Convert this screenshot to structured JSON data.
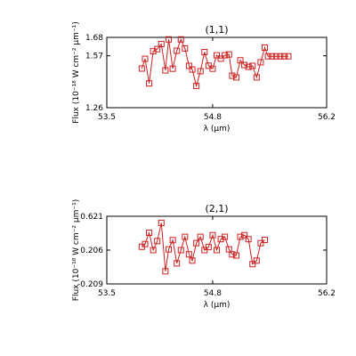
{
  "colors": {
    "series": "#cc1f1f",
    "axis": "#000000",
    "background": "#ffffff"
  },
  "ylabel_text": "Flux (10⁻¹⁸ W cm⁻² μm⁻¹)",
  "chart_data": [
    {
      "type": "line",
      "title": "(1,1)",
      "xlabel": "λ (μm)",
      "ylabel": "Flux (10⁻¹⁸ W cm⁻² μm⁻¹)",
      "xlim": [
        53.5,
        56.2
      ],
      "ylim": [
        1.26,
        1.68
      ],
      "xticks": [
        "53.5",
        "54.8",
        "56.2"
      ],
      "yticks": [
        "1.26",
        "1.57",
        "1.68"
      ],
      "ytick_values": [
        1.26,
        1.57,
        1.68
      ],
      "marker": "square",
      "grid": false,
      "series": [
        {
          "x": [
            53.93,
            53.97,
            54.02,
            54.07,
            54.12,
            54.17,
            54.22,
            54.26,
            54.31,
            54.36,
            54.41,
            54.46,
            54.51,
            54.55,
            54.6,
            54.65,
            54.7,
            54.75,
            54.8,
            54.85,
            54.9,
            54.95,
            55.0,
            55.04,
            55.09,
            55.14,
            55.19,
            55.24,
            55.29,
            55.34,
            55.39,
            55.44,
            55.48,
            55.53,
            55.58,
            55.63,
            55.68,
            55.73
          ],
          "y": [
            1.494,
            1.552,
            1.405,
            1.597,
            1.61,
            1.64,
            1.483,
            1.668,
            1.493,
            1.6,
            1.668,
            1.614,
            1.51,
            1.488,
            1.39,
            1.478,
            1.592,
            1.511,
            1.493,
            1.573,
            1.553,
            1.573,
            1.578,
            1.451,
            1.441,
            1.543,
            1.515,
            1.504,
            1.51,
            1.441,
            1.531,
            1.619,
            1.567,
            1.567,
            1.567,
            1.567,
            1.567,
            1.567
          ]
        }
      ]
    },
    {
      "type": "line",
      "title": "(2,1)",
      "xlabel": "λ (μm)",
      "ylabel": "Flux (10⁻¹⁸ W cm⁻² μm⁻¹)",
      "xlim": [
        53.5,
        56.2
      ],
      "ylim": [
        -0.209,
        0.621
      ],
      "xticks": [
        "53.5",
        "54.8",
        "56.2"
      ],
      "yticks": [
        "-0.209",
        "0.206",
        "0.621"
      ],
      "ytick_values": [
        -0.209,
        0.206,
        0.621
      ],
      "marker": "square",
      "grid": false,
      "series": [
        {
          "x": [
            53.93,
            53.97,
            54.02,
            54.07,
            54.12,
            54.17,
            54.22,
            54.26,
            54.31,
            54.36,
            54.41,
            54.46,
            54.51,
            54.55,
            54.6,
            54.65,
            54.7,
            54.75,
            54.8,
            54.85,
            54.9,
            54.95,
            55.0,
            55.04,
            55.09,
            55.14,
            55.19,
            55.24,
            55.29,
            55.34,
            55.39,
            55.44
          ],
          "y": [
            0.247,
            0.28,
            0.419,
            0.206,
            0.317,
            0.54,
            -0.054,
            0.215,
            0.329,
            0.043,
            0.206,
            0.369,
            0.154,
            0.077,
            0.291,
            0.369,
            0.206,
            0.243,
            0.389,
            0.206,
            0.34,
            0.369,
            0.215,
            0.154,
            0.14,
            0.369,
            0.389,
            0.34,
            0.034,
            0.077,
            0.291,
            0.331
          ]
        }
      ]
    }
  ]
}
